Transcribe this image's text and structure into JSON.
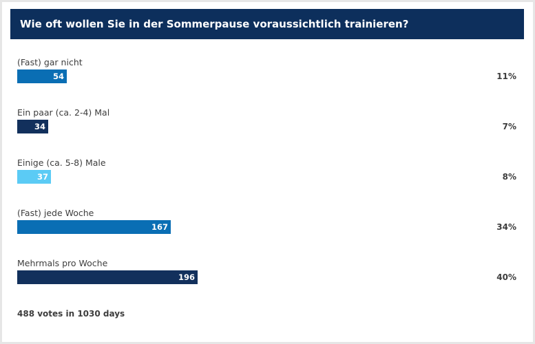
{
  "chart_data": {
    "type": "bar",
    "title": "Wie oft wollen Sie in der Sommerpause voraussichtlich trainieren?",
    "categories": [
      "(Fast) gar nicht",
      "Ein paar (ca. 2-4) Mal",
      "Einige (ca. 5-8) Male",
      "(Fast) jede Woche",
      "Mehrmals pro Woche"
    ],
    "values": [
      54,
      34,
      37,
      167,
      196
    ],
    "percentages": [
      "11%",
      "7%",
      "8%",
      "34%",
      "40%"
    ],
    "bar_colors": [
      "#0a6eb4",
      "#12305c",
      "#5bcbf5",
      "#0a6eb4",
      "#12305c"
    ],
    "orientation": "horizontal",
    "xlim": [
      0,
      196
    ]
  },
  "footer": "488 votes in 1030 days"
}
